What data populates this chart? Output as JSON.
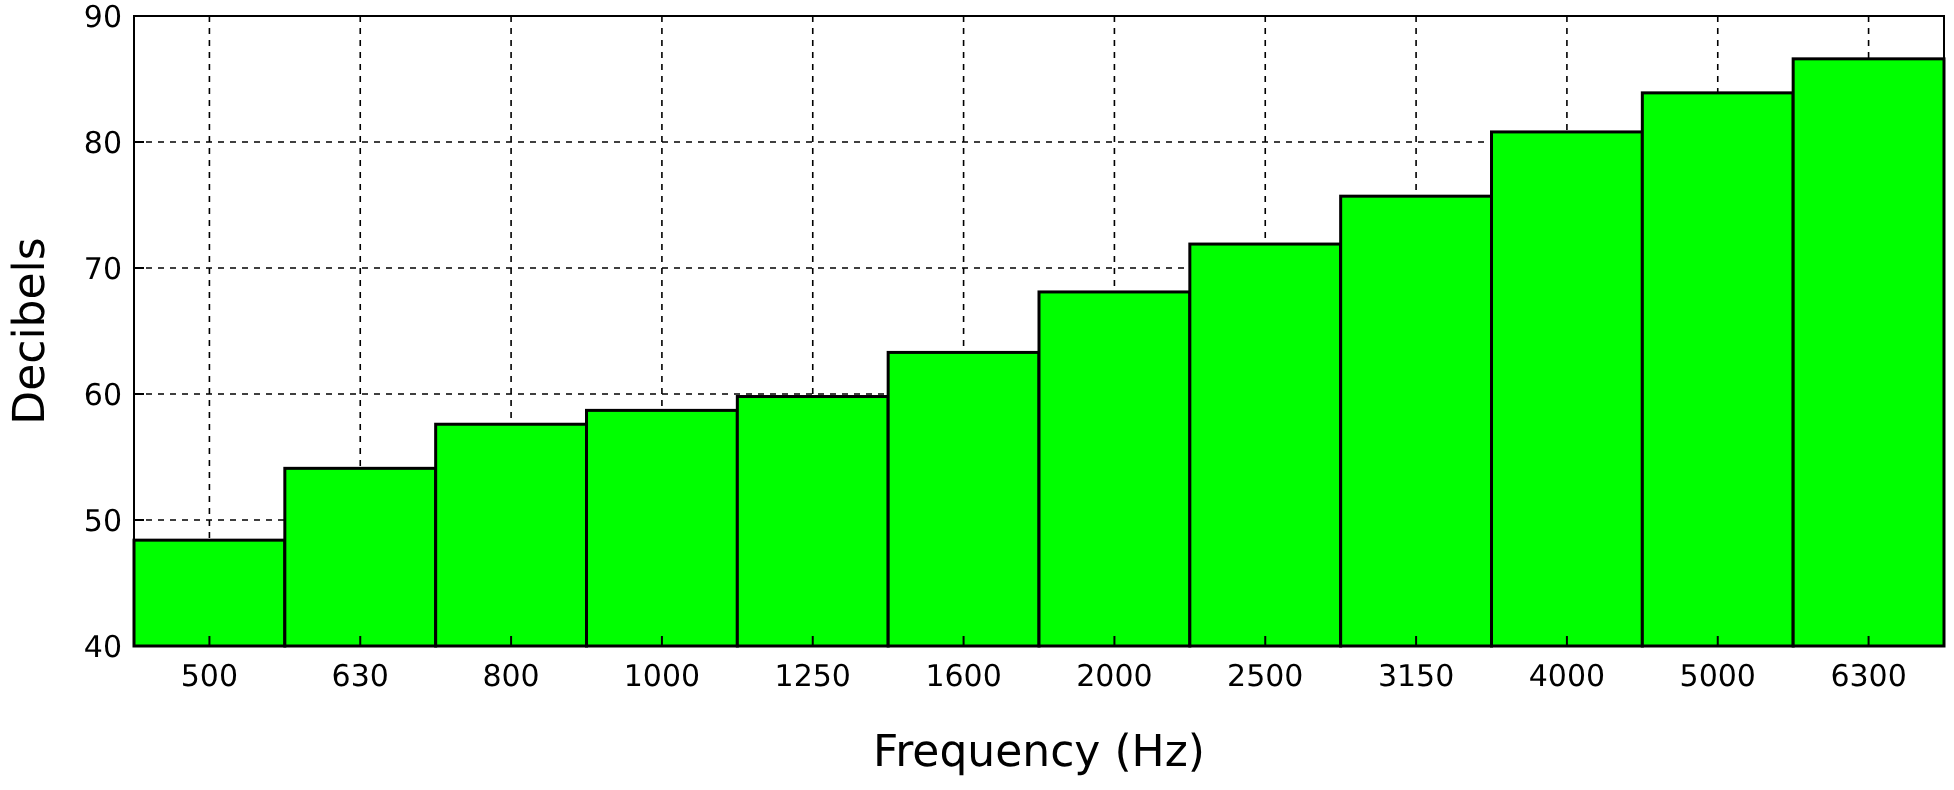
{
  "chart_data": {
    "type": "bar",
    "xlabel": "Frequency (Hz)",
    "ylabel": "Decibels",
    "categories": [
      "500",
      "630",
      "800",
      "1000",
      "1250",
      "1600",
      "2000",
      "2500",
      "3150",
      "4000",
      "5000",
      "6300"
    ],
    "values": [
      48.4,
      54.1,
      57.6,
      58.7,
      59.8,
      63.3,
      68.1,
      71.9,
      75.7,
      80.8,
      83.9,
      86.6
    ],
    "color": "#00ff00",
    "ylim": [
      40,
      90
    ],
    "yticks": [
      40,
      50,
      60,
      70,
      80,
      90
    ],
    "grid": true
  }
}
